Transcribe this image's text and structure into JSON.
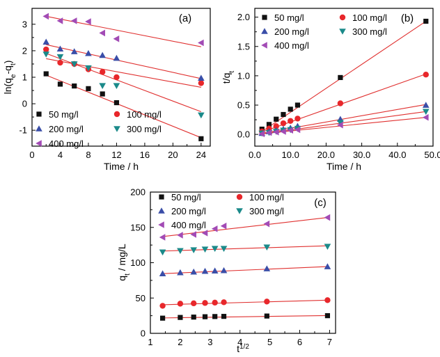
{
  "colors": {
    "50 mg/l": "#111111",
    "100 mg/l": "#e8272b",
    "200 mg/l": "#3a4ea8",
    "300 mg/l": "#1b8a8a",
    "400 mg/l": "#a24bb5",
    "fit_line": "#e0302f"
  },
  "chart_data": [
    {
      "type": "scatter",
      "panel_label": "(a)",
      "xlabel": "Time  / h",
      "ylabel": "ln(q_e-q_t)",
      "xlim": [
        0,
        25.3
      ],
      "ylim": [
        -1.6,
        3.6
      ],
      "xticks": [
        0,
        4,
        8,
        12,
        16,
        20,
        24
      ],
      "yticks": [
        -1,
        0,
        1,
        2,
        3
      ],
      "grid": false,
      "legend": "bottom-left",
      "series": [
        {
          "name": "50 mg/l",
          "marker": "square",
          "x": [
            2,
            4,
            6,
            8,
            10,
            12,
            24
          ],
          "y": [
            1.13,
            0.74,
            0.67,
            0.57,
            0.37,
            0.04,
            -1.32
          ],
          "fit": [
            [
              2,
              1.08
            ],
            [
              24,
              -1.28
            ]
          ]
        },
        {
          "name": "100 mg/l",
          "marker": "circle",
          "x": [
            2,
            4,
            6,
            8,
            10,
            12,
            24
          ],
          "y": [
            2.05,
            1.55,
            1.5,
            1.3,
            1.2,
            1.0,
            0.78
          ],
          "fit": [
            [
              2,
              1.7
            ],
            [
              24,
              0.62
            ]
          ]
        },
        {
          "name": "200 mg/l",
          "marker": "triangle-up",
          "x": [
            2,
            4,
            6,
            8,
            10,
            12,
            24
          ],
          "y": [
            2.33,
            2.07,
            1.97,
            1.9,
            1.83,
            1.72,
            0.97
          ],
          "fit": [
            [
              2,
              2.23
            ],
            [
              24,
              0.95
            ]
          ]
        },
        {
          "name": "300 mg/l",
          "marker": "triangle-down",
          "x": [
            2,
            4,
            6,
            8,
            10,
            12,
            24
          ],
          "y": [
            1.87,
            1.77,
            1.5,
            1.35,
            0.68,
            0.68,
            -0.43
          ],
          "fit": [
            [
              2,
              1.9
            ],
            [
              24,
              -0.3
            ]
          ]
        },
        {
          "name": "400 mg/l",
          "marker": "triangle-left",
          "x": [
            2,
            4,
            6,
            8,
            10,
            12,
            24
          ],
          "y": [
            3.3,
            3.13,
            3.13,
            3.1,
            2.67,
            2.45,
            2.3
          ],
          "fit": [
            [
              2,
              3.3
            ],
            [
              24,
              2.15
            ]
          ]
        }
      ]
    },
    {
      "type": "scatter",
      "panel_label": "(b)",
      "xlabel": "Time / h",
      "ylabel": "t/q_t",
      "xlim": [
        0,
        50
      ],
      "ylim": [
        -0.2,
        2.15
      ],
      "xticks": [
        0,
        10,
        20,
        30,
        40,
        50
      ],
      "yticks": [
        0.0,
        0.5,
        1.0,
        1.5,
        2.0
      ],
      "grid": false,
      "legend": "top-left",
      "series": [
        {
          "name": "50 mg/l",
          "marker": "square",
          "x": [
            2,
            4,
            6,
            8,
            10,
            12,
            24,
            48
          ],
          "y": [
            0.09,
            0.17,
            0.26,
            0.34,
            0.43,
            0.5,
            0.97,
            1.93
          ],
          "fit": [
            [
              2,
              0.05
            ],
            [
              48,
              1.93
            ]
          ]
        },
        {
          "name": "100 mg/l",
          "marker": "circle",
          "x": [
            2,
            4,
            6,
            8,
            10,
            12,
            24,
            48
          ],
          "y": [
            0.05,
            0.1,
            0.14,
            0.19,
            0.23,
            0.27,
            0.53,
            1.02
          ],
          "fit": [
            [
              2,
              0.04
            ],
            [
              48,
              1.03
            ]
          ]
        },
        {
          "name": "200 mg/l",
          "marker": "triangle-up",
          "x": [
            2,
            4,
            6,
            8,
            10,
            12,
            24,
            48
          ],
          "y": [
            0.02,
            0.05,
            0.07,
            0.09,
            0.11,
            0.14,
            0.26,
            0.5
          ],
          "fit": [
            [
              2,
              0.02
            ],
            [
              48,
              0.51
            ]
          ]
        },
        {
          "name": "300 mg/l",
          "marker": "triangle-down",
          "x": [
            2,
            4,
            6,
            8,
            10,
            12,
            24,
            48
          ],
          "y": [
            0.02,
            0.03,
            0.05,
            0.07,
            0.08,
            0.1,
            0.2,
            0.39
          ],
          "fit": [
            [
              2,
              0.01
            ],
            [
              48,
              0.39
            ]
          ]
        },
        {
          "name": "400 mg/l",
          "marker": "triangle-left",
          "x": [
            2,
            4,
            6,
            8,
            10,
            12,
            24,
            48
          ],
          "y": [
            0.01,
            0.03,
            0.04,
            0.05,
            0.07,
            0.08,
            0.16,
            0.29
          ],
          "fit": [
            [
              2,
              0.01
            ],
            [
              48,
              0.29
            ]
          ]
        }
      ]
    },
    {
      "type": "scatter",
      "panel_label": "(c)",
      "xlabel": "t^1/2",
      "ylabel": "q_t / mg/L",
      "xlim": [
        1,
        7.2
      ],
      "ylim": [
        0,
        200
      ],
      "xticks": [
        1,
        2,
        3,
        4,
        5,
        6,
        7
      ],
      "yticks": [
        0,
        50,
        100,
        150,
        200
      ],
      "grid": false,
      "legend": "top-left",
      "series": [
        {
          "name": "50 mg/l",
          "marker": "square",
          "x": [
            1.41,
            2.0,
            2.45,
            2.83,
            3.16,
            3.46,
            4.9,
            6.93
          ],
          "y": [
            21.5,
            22.5,
            23,
            23.5,
            23.8,
            24,
            24.5,
            25
          ],
          "fit": [
            [
              1.41,
              21.8
            ],
            [
              6.93,
              25.2
            ]
          ]
        },
        {
          "name": "100 mg/l",
          "marker": "circle",
          "x": [
            1.41,
            2.0,
            2.45,
            2.83,
            3.16,
            3.46,
            4.9,
            6.93
          ],
          "y": [
            39,
            42,
            42.5,
            43,
            43.5,
            44,
            45,
            47
          ],
          "fit": [
            [
              1.41,
              40.5
            ],
            [
              6.93,
              47
            ]
          ]
        },
        {
          "name": "200 mg/l",
          "marker": "triangle-up",
          "x": [
            1.41,
            2.0,
            2.45,
            2.83,
            3.16,
            3.46,
            4.9,
            6.93
          ],
          "y": [
            84.5,
            86,
            87,
            88,
            88.5,
            89,
            91.5,
            94.5
          ],
          "fit": [
            [
              1.41,
              84.5
            ],
            [
              6.93,
              94.5
            ]
          ]
        },
        {
          "name": "300 mg/l",
          "marker": "triangle-down",
          "x": [
            1.41,
            2.0,
            2.45,
            2.83,
            3.16,
            3.46,
            4.9,
            6.93
          ],
          "y": [
            115,
            117,
            118,
            119,
            120,
            120,
            122,
            123
          ],
          "fit": [
            [
              1.41,
              116.5
            ],
            [
              6.93,
              124
            ]
          ]
        },
        {
          "name": "400 mg/l",
          "marker": "triangle-left",
          "x": [
            1.41,
            2.0,
            2.45,
            2.83,
            3.16,
            3.46,
            4.9,
            6.93
          ],
          "y": [
            136,
            139,
            140,
            142,
            148,
            152,
            155,
            164
          ],
          "fit": [
            [
              1.41,
              137
            ],
            [
              6.93,
              164
            ]
          ]
        }
      ]
    }
  ]
}
